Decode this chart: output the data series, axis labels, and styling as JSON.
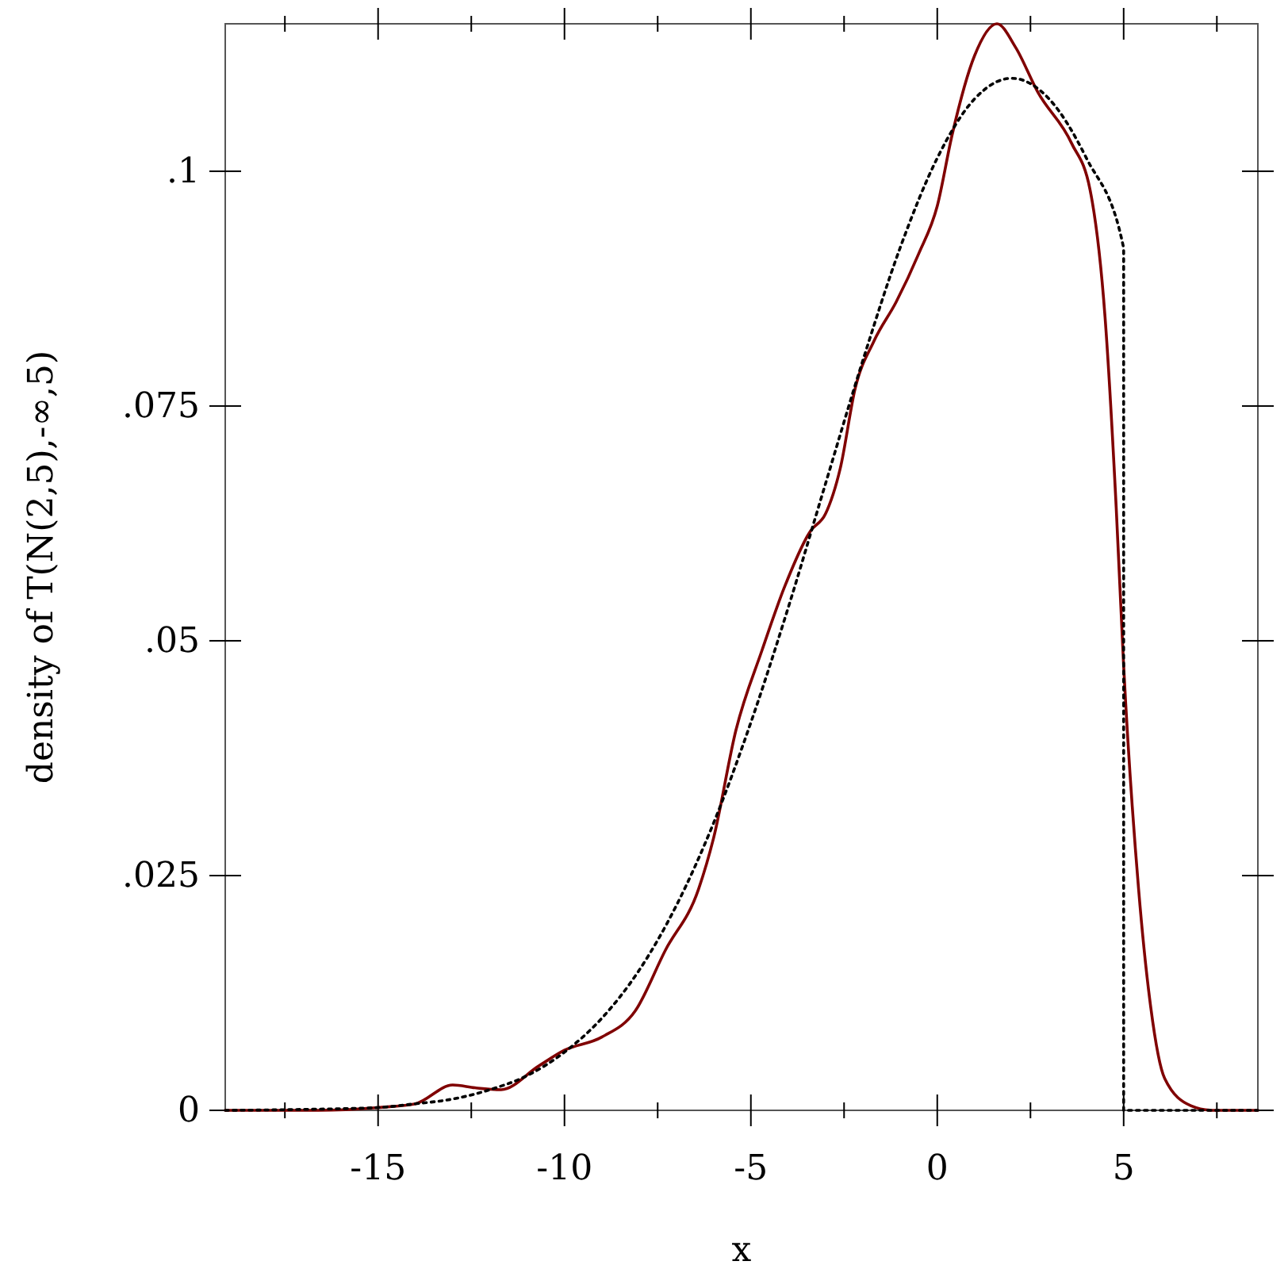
{
  "chart_data": {
    "type": "line",
    "xlabel": "x",
    "ylabel": "density of T(N(2,5),-∞,5)",
    "xlim": [
      -19.1,
      8.6
    ],
    "ylim": [
      0,
      0.1157
    ],
    "xticks": [
      {
        "value": -17.5,
        "label": null
      },
      -15,
      {
        "value": -12.5,
        "label": null
      },
      -10,
      {
        "value": -7.5,
        "label": null
      },
      -5,
      {
        "value": -2.5,
        "label": null
      },
      0,
      {
        "value": 2.5,
        "label": null
      },
      5,
      {
        "value": 7.5,
        "label": null
      }
    ],
    "yticks": [
      0,
      {
        "value": 0.025,
        "label": ".025"
      },
      {
        "value": 0.05,
        "label": ".05"
      },
      {
        "value": 0.075,
        "label": ".075"
      },
      {
        "value": 0.1,
        "label": ".1"
      }
    ],
    "grid": false,
    "marker": "none",
    "series": [
      {
        "color": "#800000",
        "line_style": "solid",
        "x": [
          -19.1,
          -16.6,
          -15,
          -14,
          -13,
          -12.4,
          -11.7,
          -10.7,
          -10,
          -9,
          -8.1,
          -7.3,
          -6.4,
          -6,
          -5.4,
          -4.7,
          -4.1,
          -3.4,
          -3.0,
          -2.6,
          -2.2,
          -1.7,
          -1.1,
          -0.5,
          0,
          0.4,
          1.0,
          1.6,
          2.1,
          2.7,
          3.6,
          4.1,
          4.5,
          4.8,
          5.0,
          5.4,
          5.7,
          6.1,
          6.8,
          7.4,
          8.6
        ],
        "values": [
          0,
          0,
          0.0003,
          0.0007,
          0.0027,
          0.0024,
          0.0022,
          0.0047,
          0.0064,
          0.0078,
          0.0106,
          0.017,
          0.0236,
          0.029,
          0.0405,
          0.049,
          0.0557,
          0.0617,
          0.0635,
          0.0684,
          0.0769,
          0.0819,
          0.0861,
          0.0912,
          0.0963,
          0.1039,
          0.1123,
          0.1157,
          0.1132,
          0.1084,
          0.103,
          0.098,
          0.0845,
          0.0642,
          0.0473,
          0.0236,
          0.0118,
          0.0034,
          0.0005,
          0,
          0
        ]
      },
      {
        "color": "#000000",
        "line_style": "dotted",
        "x": [
          -19.1,
          -17,
          -15,
          -14,
          -13,
          -12,
          -11,
          -10,
          -9,
          -8,
          -7,
          -6,
          -5,
          -4,
          -3,
          -2,
          -1,
          0,
          1,
          2,
          3,
          4,
          5,
          5,
          8.6
        ],
        "values": [
          0,
          0.0001,
          0.0003,
          0.0007,
          0.0012,
          0.0022,
          0.0037,
          0.0062,
          0.0098,
          0.0149,
          0.0218,
          0.0306,
          0.0413,
          0.0535,
          0.0667,
          0.0798,
          0.0918,
          0.1014,
          0.1077,
          0.1099,
          0.1077,
          0.1014,
          0.0918,
          0,
          0
        ]
      }
    ]
  }
}
